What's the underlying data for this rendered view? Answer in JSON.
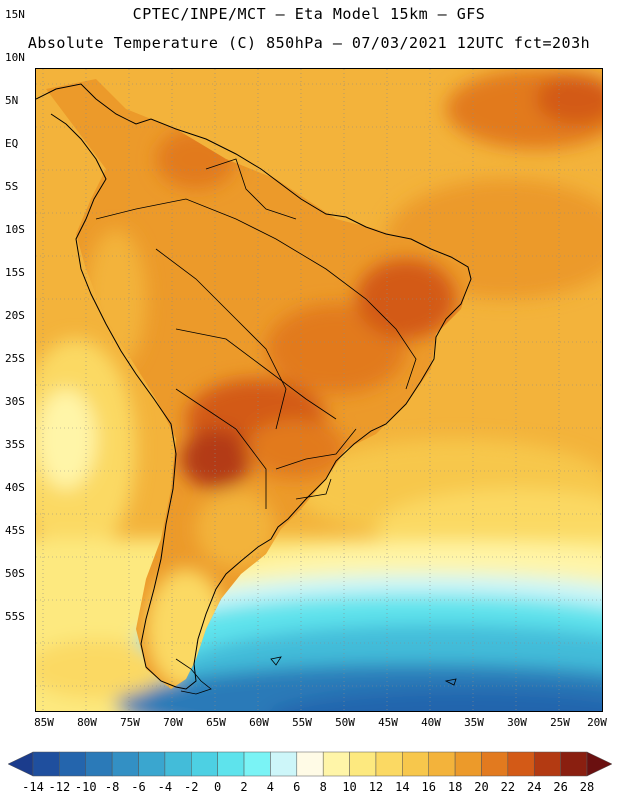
{
  "header": {
    "line1": "CPTEC/INPE/MCT –  Eta Model 15km – GFS",
    "line2": "Absolute Temperature (C) 850hPa – 07/03/2021 12UTC fct=203h"
  },
  "map": {
    "lat_labels": [
      "15N",
      "10N",
      "5N",
      "EQ",
      "5S",
      "10S",
      "15S",
      "20S",
      "25S",
      "30S",
      "35S",
      "40S",
      "45S",
      "50S",
      "55S"
    ],
    "lon_labels": [
      "85W",
      "80W",
      "75W",
      "70W",
      "65W",
      "60W",
      "55W",
      "50W",
      "45W",
      "40W",
      "35W",
      "30W",
      "25W",
      "20W"
    ]
  },
  "legend": {
    "labels": [
      "-14",
      "-12",
      "-10",
      "-8",
      "-6",
      "-4",
      "-2",
      "0",
      "2",
      "4",
      "6",
      "8",
      "10",
      "12",
      "14",
      "16",
      "18",
      "20",
      "22",
      "24",
      "26",
      "28"
    ],
    "colors": [
      "#1b3c8c",
      "#1f4f9e",
      "#2465ad",
      "#2b7ab8",
      "#3390c4",
      "#3aa6cf",
      "#43bcd9",
      "#4dd0e3",
      "#5ee3ec",
      "#7af3f5",
      "#cdf6f9",
      "#fffbe6",
      "#fff5a8",
      "#fde97f",
      "#fbd963",
      "#f7c74c",
      "#f3b33b",
      "#ec9a2a",
      "#e27a1f",
      "#d35a17",
      "#b33a12",
      "#8a1f10",
      "#6a1010"
    ]
  }
}
